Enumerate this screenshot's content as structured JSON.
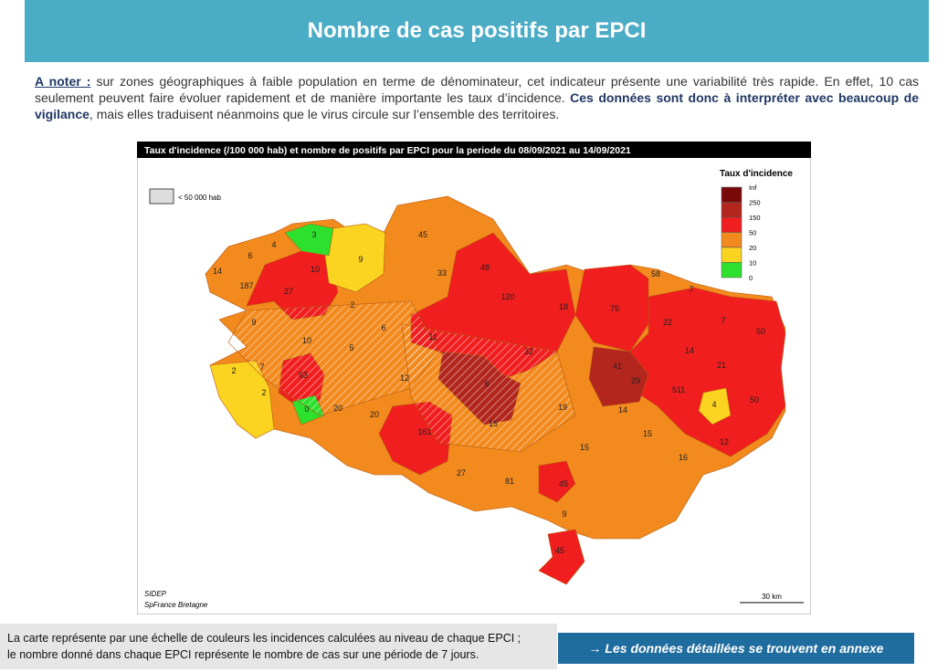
{
  "header": {
    "title": "Nombre de cas positifs par EPCI"
  },
  "note": {
    "lead": "A noter :",
    "text1": " sur zones géographiques à faible population en terme de dénominateur, cet indicateur présente une variabilité très rapide. En effet, 10 cas seulement peuvent faire évoluer rapidement et de manière importante les taux d’incidence. ",
    "bold": "Ces données sont donc à interpréter avec beaucoup de vigilance",
    "text2": ", mais elles traduisent néanmoins que le virus circule sur l’ensemble des territoires."
  },
  "map": {
    "title": "Taux d'incidence (/100 000 hab) et nombre de positifs par EPCI pour la periode du 08/09/2021 au 14/09/2021",
    "hatch_legend": "< 50 000 hab",
    "legend": {
      "title": "Taux d'incidence",
      "labels": [
        "Inf",
        "250",
        "150",
        "50",
        "20",
        "10",
        "0"
      ],
      "colors": [
        "#7a0a0a",
        "#b3261e",
        "#f01e1e",
        "#f28a1e",
        "#fbd321",
        "#2ee02e"
      ]
    },
    "labels": [
      14,
      6,
      4,
      3,
      10,
      9,
      45,
      187,
      27,
      33,
      48,
      58,
      7,
      120,
      18,
      75,
      2,
      9,
      6,
      10,
      5,
      11,
      22,
      7,
      50,
      32,
      14,
      2,
      7,
      53,
      12,
      6,
      41,
      29,
      21,
      511,
      2,
      4,
      50,
      0,
      20,
      20,
      19,
      14,
      15,
      161,
      15,
      12,
      15,
      16,
      27,
      81,
      45,
      9,
      45
    ],
    "source": "SIDEP",
    "source2": "SpFrance Bretagne",
    "scale": "30 km"
  },
  "footer": {
    "line1": "La carte représente par une échelle de couleurs les incidences calculées au niveau de chaque EPCI ;",
    "line2": "le nombre donné dans chaque EPCI représente le nombre de cas sur une période de 7 jours.",
    "button": "→ Les données détaillées se trouvent en annexe"
  }
}
